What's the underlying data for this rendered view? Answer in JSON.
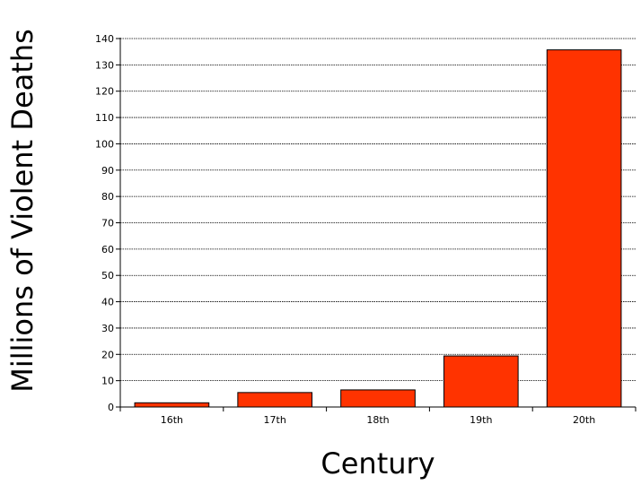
{
  "chart_data": {
    "type": "bar",
    "title": "",
    "xlabel": "Century",
    "ylabel": "Millions of Violent Deaths",
    "categories": [
      "16th",
      "17th",
      "18th",
      "19th",
      "20th"
    ],
    "values": [
      1.6,
      5.5,
      6.5,
      19.4,
      135.7
    ],
    "ylim": [
      0,
      140
    ],
    "yticks": [
      0,
      10,
      20,
      30,
      40,
      50,
      60,
      70,
      80,
      90,
      100,
      110,
      120,
      130,
      140
    ],
    "grid": true,
    "legend": "none",
    "colors": {
      "bar": "#ff3300",
      "bar_stroke": "#000000",
      "grid": "#000000"
    }
  }
}
